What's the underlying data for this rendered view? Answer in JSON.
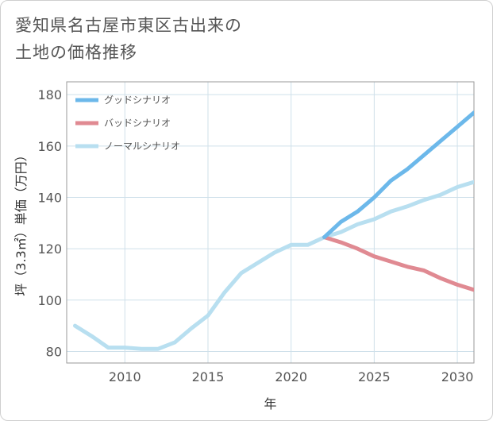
{
  "title_lines": [
    "愛知県名古屋市東区古出来の",
    "土地の価格推移"
  ],
  "chart_data": {
    "type": "line",
    "xlabel": "年",
    "ylabel": "坪（3.3㎡）単価（万円）",
    "xlim": [
      2006.5,
      2031
    ],
    "ylim": [
      75.5,
      185
    ],
    "xticks": [
      2010,
      2015,
      2020,
      2025,
      2030
    ],
    "yticks": [
      80,
      100,
      120,
      140,
      160,
      180
    ],
    "grid": true,
    "legend_position": "top-left",
    "series": [
      {
        "name": "グッドシナリオ",
        "color": "#6cb8ea",
        "x": [
          2022,
          2023,
          2024,
          2025,
          2026,
          2027,
          2028,
          2029,
          2030,
          2031
        ],
        "y": [
          124.5,
          130.5,
          134.5,
          140,
          146.5,
          151,
          156.5,
          162,
          167.5,
          173
        ]
      },
      {
        "name": "バッドシナリオ",
        "color": "#e08a92",
        "x": [
          2022,
          2023,
          2024,
          2025,
          2026,
          2027,
          2028,
          2029,
          2030,
          2031
        ],
        "y": [
          124.5,
          122.5,
          120,
          117,
          115,
          113,
          111.5,
          108.5,
          106,
          104
        ]
      },
      {
        "name": "ノーマルシナリオ",
        "color": "#b8dff0",
        "x": [
          2007,
          2008,
          2009,
          2010,
          2011,
          2012,
          2013,
          2014,
          2015,
          2016,
          2017,
          2018,
          2019,
          2020,
          2021,
          2022,
          2023,
          2024,
          2025,
          2026,
          2027,
          2028,
          2029,
          2030,
          2031
        ],
        "y": [
          90,
          86,
          81.5,
          81.5,
          81,
          81,
          83.5,
          89,
          94,
          103,
          110.5,
          114.5,
          118.5,
          121.5,
          121.5,
          124.5,
          126.5,
          129.5,
          131.5,
          134.5,
          136.5,
          139,
          141,
          144,
          146
        ]
      }
    ]
  }
}
